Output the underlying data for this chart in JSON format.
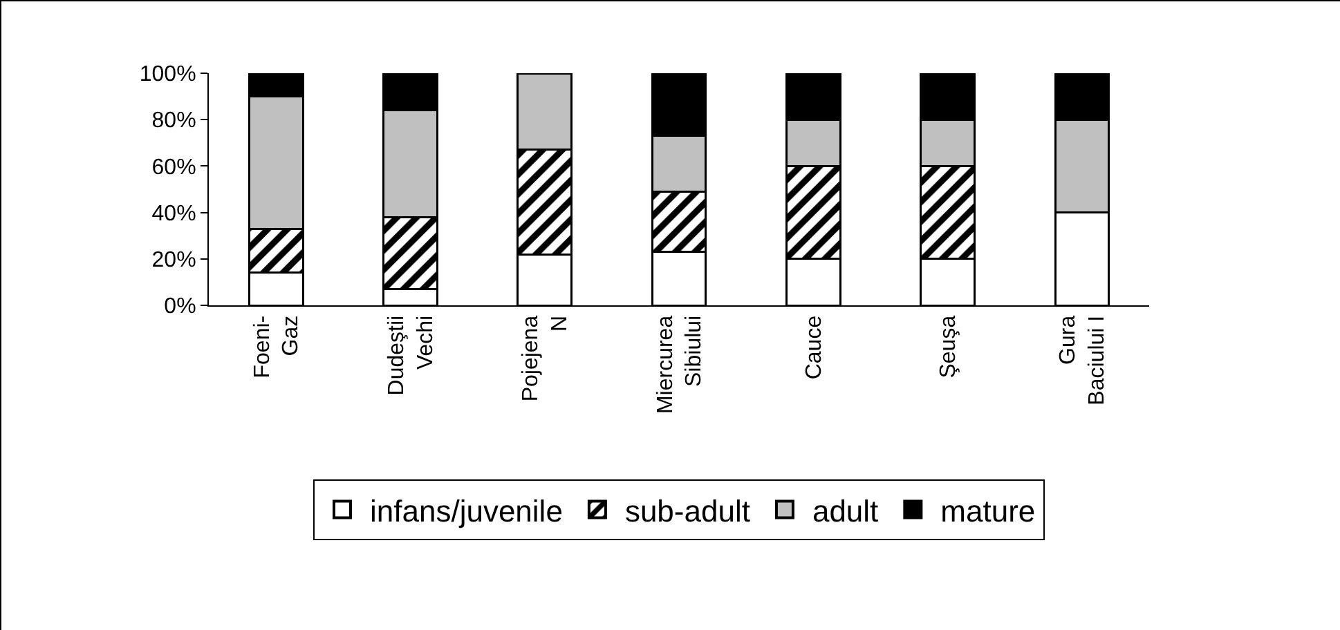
{
  "chart_data": {
    "type": "bar",
    "stacked": true,
    "categories": [
      "Foeni-Gaz",
      "Dudeştii Vechi",
      "Pojejena N",
      "Miercurea Sibiului",
      "Cauce",
      "Şeuşa",
      "Gura Baciului I"
    ],
    "series": [
      {
        "name": "infans/juvenile",
        "color": "#ffffff",
        "values": [
          14,
          7,
          22,
          23,
          20,
          20,
          40
        ]
      },
      {
        "name": "sub-adult",
        "color": "#000000",
        "values": [
          19,
          31,
          45,
          26,
          40,
          40,
          0
        ]
      },
      {
        "name": "adult",
        "color": "#c0c0c0",
        "values": [
          57,
          46,
          33,
          24,
          20,
          20,
          40
        ]
      },
      {
        "name": "mature",
        "color": "#000000",
        "values": [
          10,
          16,
          0,
          27,
          20,
          20,
          20
        ]
      }
    ],
    "ylim": [
      0,
      100
    ],
    "yticks": [
      {
        "value": 0,
        "label": "0%"
      },
      {
        "value": 20,
        "label": "20%"
      },
      {
        "value": 40,
        "label": "40%"
      },
      {
        "value": 60,
        "label": "60%"
      },
      {
        "value": 80,
        "label": "80%"
      },
      {
        "value": 100,
        "label": "100%"
      }
    ],
    "grid": false,
    "legend": "bottom"
  }
}
